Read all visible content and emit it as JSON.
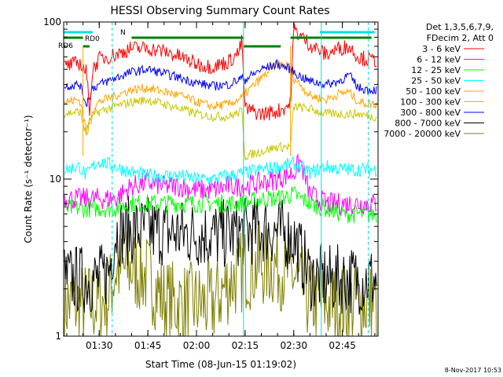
{
  "chart_data": {
    "type": "line",
    "title": "HESSI Observing Summary Count Rates",
    "xlabel": "Start Time (08-Jun-15 01:19:02)",
    "ylabel": "Count Rate (s⁻¹ detector⁻¹)",
    "ylim": [
      1,
      100
    ],
    "yscale": "log",
    "xlim": [
      "01:19:02",
      "02:56:00"
    ],
    "x_ticks": [
      "01:30",
      "01:45",
      "02:00",
      "02:15",
      "02:30",
      "02:45"
    ],
    "y_ticks": [
      "1",
      "10",
      "100"
    ],
    "info_lines": [
      "Det 1,3,5,6,7,9,",
      "FDecim 2, Att 0"
    ],
    "footer": "8-Nov-2017 10:53",
    "flags": [
      {
        "label": "RD0",
        "color": "#008000",
        "segments": [
          [
            "01:19:02",
            "01:25:00"
          ],
          [
            "01:40:00",
            "02:14:30"
          ],
          [
            "02:29:00",
            "02:54:00"
          ]
        ]
      },
      {
        "label": "RD6",
        "color": "#008000",
        "segments": [
          [
            "01:19:02",
            "01:19:30"
          ],
          [
            "01:25:00",
            "01:27:00"
          ],
          [
            "02:14:30",
            "02:26:00"
          ]
        ]
      },
      {
        "label": "N",
        "color": "#00e0e0",
        "segments": [
          [
            "01:19:02",
            "01:28:00"
          ],
          [
            "02:38:00",
            "02:55:00"
          ]
        ]
      }
    ],
    "series": [
      {
        "name": "3 - 6 keV",
        "color": "#ff0000",
        "x": [
          "01:19",
          "01:24",
          "01:26",
          "01:27",
          "01:28",
          "01:30",
          "01:35",
          "01:40",
          "01:45",
          "01:50",
          "01:55",
          "02:00",
          "02:05",
          "02:10",
          "02:13",
          "02:14",
          "02:15",
          "02:20",
          "02:25",
          "02:29",
          "02:30",
          "02:32",
          "02:35",
          "02:40",
          "02:44",
          "02:47",
          "02:50",
          "02:54"
        ],
        "y": [
          52,
          55,
          48,
          28,
          50,
          58,
          62,
          68,
          68,
          65,
          60,
          54,
          52,
          56,
          64,
          75,
          28,
          26,
          27,
          30,
          90,
          82,
          72,
          62,
          68,
          70,
          60,
          57
        ]
      },
      {
        "name": "6 - 12 keV",
        "color": "#ff00ff",
        "x": [
          "01:19",
          "01:30",
          "01:35",
          "01:40",
          "01:45",
          "01:50",
          "01:55",
          "02:00",
          "02:05",
          "02:10",
          "02:15",
          "02:20",
          "02:25",
          "02:30",
          "02:32",
          "02:35",
          "02:40",
          "02:45",
          "02:50",
          "02:54"
        ],
        "y": [
          7.5,
          7.5,
          7.5,
          9,
          9.5,
          9,
          9,
          8.5,
          8.5,
          9,
          9,
          9.5,
          10,
          11,
          13,
          8,
          7,
          7,
          7,
          7
        ]
      },
      {
        "name": "12 - 25 keV",
        "color": "#00ff00",
        "x": [
          "01:19",
          "01:30",
          "01:35",
          "01:40",
          "01:45",
          "01:50",
          "01:55",
          "02:00",
          "02:05",
          "02:10",
          "02:15",
          "02:20",
          "02:25",
          "02:30",
          "02:35",
          "02:40",
          "02:45",
          "02:50",
          "02:54"
        ],
        "y": [
          6.5,
          6.5,
          6.5,
          7,
          7,
          7,
          7,
          7,
          7,
          7,
          7,
          7.5,
          7.5,
          8,
          7,
          6.5,
          6,
          6,
          6
        ]
      },
      {
        "name": "25 - 50 keV",
        "color": "#00ffff",
        "x": [
          "01:19",
          "01:24",
          "01:26",
          "01:28",
          "01:30",
          "01:35",
          "01:40",
          "01:45",
          "01:50",
          "01:55",
          "02:00",
          "02:05",
          "02:10",
          "02:15",
          "02:20",
          "02:25",
          "02:30",
          "02:35",
          "02:40",
          "02:45",
          "02:50",
          "02:54"
        ],
        "y": [
          11.5,
          12,
          10.5,
          12,
          13,
          12,
          11,
          10.5,
          10.5,
          10.5,
          10,
          10,
          10.5,
          11,
          11.5,
          12,
          12.5,
          11,
          12,
          11.5,
          11.5,
          11.5
        ]
      },
      {
        "name": "50 - 100 keV",
        "color": "#ffa500",
        "x": [
          "01:19",
          "01:24",
          "01:26",
          "01:28",
          "01:30",
          "01:35",
          "01:40",
          "01:45",
          "01:50",
          "01:55",
          "02:00",
          "02:05",
          "02:10",
          "02:14",
          "02:15",
          "02:20",
          "02:25",
          "02:29",
          "02:30",
          "02:32",
          "02:35",
          "02:40",
          "02:44",
          "02:47",
          "02:50",
          "02:54"
        ],
        "y": [
          31,
          32,
          20,
          28,
          31,
          34,
          37,
          38,
          36,
          34,
          31,
          29,
          30,
          33,
          35,
          44,
          54,
          52,
          44,
          40,
          34,
          32,
          35,
          36,
          31,
          30
        ]
      },
      {
        "name": "100 - 300 keV",
        "color": "#c8c800",
        "x": [
          "01:19",
          "01:24",
          "01:26",
          "01:28",
          "01:30",
          "01:35",
          "01:40",
          "01:45",
          "01:50",
          "01:55",
          "02:00",
          "02:05",
          "02:10",
          "02:14",
          "02:15",
          "02:20",
          "02:25",
          "02:29",
          "02:30",
          "02:35",
          "02:40",
          "02:45",
          "02:50",
          "02:54"
        ],
        "y": [
          26,
          27,
          19,
          25,
          27,
          29,
          31,
          32,
          30,
          28,
          26,
          25,
          25,
          27,
          14,
          15,
          16,
          16,
          29,
          28,
          26,
          26,
          26,
          25
        ]
      },
      {
        "name": "300 - 800 keV",
        "color": "#0000ff",
        "x": [
          "01:19",
          "01:24",
          "01:26",
          "01:28",
          "01:30",
          "01:35",
          "01:40",
          "01:45",
          "01:50",
          "01:55",
          "02:00",
          "02:05",
          "02:10",
          "02:14",
          "02:15",
          "02:20",
          "02:25",
          "02:29",
          "02:30",
          "02:32",
          "02:35",
          "02:40",
          "02:44",
          "02:47",
          "02:50",
          "02:54"
        ],
        "y": [
          39,
          40,
          30,
          38,
          40,
          44,
          48,
          50,
          47,
          44,
          41,
          39,
          40,
          44,
          43,
          50,
          54,
          50,
          48,
          45,
          42,
          40,
          42,
          46,
          38,
          37
        ]
      },
      {
        "name": "800 - 7000 keV",
        "color": "#000000",
        "x": [
          "01:19",
          "01:30",
          "01:33",
          "01:35",
          "01:40",
          "01:45",
          "01:50",
          "01:55",
          "02:00",
          "02:05",
          "02:10",
          "02:15",
          "02:20",
          "02:25",
          "02:30",
          "02:35",
          "02:40",
          "02:45",
          "02:50",
          "02:54"
        ],
        "y": [
          2.3,
          2.3,
          2.6,
          4.6,
          4.7,
          4.7,
          4.6,
          4.5,
          4.5,
          4.4,
          4.5,
          4.6,
          4.8,
          4.6,
          4.2,
          2.4,
          2.3,
          2.3,
          2.3,
          2.3
        ]
      },
      {
        "name": "7000 - 20000 keV",
        "color": "#808000",
        "x": [
          "01:19",
          "01:30",
          "01:33",
          "01:35",
          "01:40",
          "01:45",
          "01:50",
          "01:55",
          "02:00",
          "02:05",
          "02:10",
          "02:15",
          "02:20",
          "02:25",
          "02:30",
          "02:35",
          "02:40",
          "02:45",
          "02:50",
          "02:54"
        ],
        "y": [
          1.6,
          1.6,
          1.8,
          2.6,
          2.7,
          2.4,
          1.7,
          1.6,
          1.6,
          1.6,
          2.2,
          2.7,
          2.8,
          2.8,
          2.4,
          1.7,
          1.6,
          1.6,
          1.6,
          1.6
        ]
      }
    ],
    "markers": {
      "dashed_cyan": [
        "01:34:00",
        "02:53:00"
      ],
      "solid_cyan": [
        "02:14:30",
        "02:38:30"
      ],
      "orange_spikes": [
        "01:25:00",
        "02:14:30",
        "02:29:00"
      ]
    }
  }
}
